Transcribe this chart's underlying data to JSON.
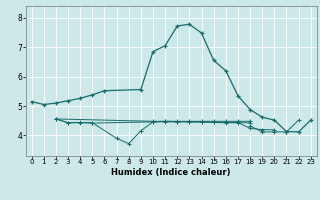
{
  "xlabel": "Humidex (Indice chaleur)",
  "background_color": "#cce8e8",
  "grid_color": "#ffffff",
  "line_color": "#1a6b6b",
  "xlim": [
    -0.5,
    23.5
  ],
  "ylim": [
    3.3,
    8.4
  ],
  "yticks": [
    4,
    5,
    6,
    7,
    8
  ],
  "xticks": [
    0,
    1,
    2,
    3,
    4,
    5,
    6,
    7,
    8,
    9,
    10,
    11,
    12,
    13,
    14,
    15,
    16,
    17,
    18,
    19,
    20,
    21,
    22,
    23
  ],
  "main_x": [
    0,
    1,
    2,
    3,
    4,
    5,
    6,
    9,
    10,
    11,
    12,
    13,
    14,
    15,
    16,
    17,
    18,
    19,
    20,
    21,
    22,
    23
  ],
  "main_y": [
    5.15,
    5.05,
    5.1,
    5.18,
    5.26,
    5.38,
    5.52,
    5.56,
    6.85,
    7.05,
    7.72,
    7.78,
    7.48,
    6.55,
    6.2,
    5.35,
    4.88,
    4.62,
    4.52,
    4.13,
    4.12,
    4.52
  ],
  "flat1_x": [
    2,
    3,
    4,
    5,
    7,
    8,
    9,
    10,
    11,
    12,
    13,
    14,
    15,
    16,
    17,
    18
  ],
  "flat1_y": [
    4.56,
    4.43,
    4.44,
    4.43,
    3.9,
    3.72,
    4.16,
    4.46,
    4.48,
    4.47,
    4.46,
    4.45,
    4.44,
    4.43,
    4.43,
    4.43
  ],
  "flat2_x": [
    2,
    3,
    4,
    5,
    10,
    11,
    12,
    13,
    14,
    15,
    16,
    17,
    18,
    19,
    20
  ],
  "flat2_y": [
    4.56,
    4.43,
    4.43,
    4.42,
    4.46,
    4.46,
    4.46,
    4.46,
    4.46,
    4.46,
    4.44,
    4.44,
    4.24,
    4.2,
    4.19
  ],
  "flat3_x": [
    2,
    10,
    11,
    12,
    13,
    14,
    15,
    16,
    17,
    18
  ],
  "flat3_y": [
    4.56,
    4.48,
    4.48,
    4.48,
    4.48,
    4.48,
    4.48,
    4.48,
    4.48,
    4.48
  ],
  "flat4_x": [
    18,
    19,
    20,
    21,
    22
  ],
  "flat4_y": [
    4.32,
    4.12,
    4.12,
    4.12,
    4.52
  ]
}
